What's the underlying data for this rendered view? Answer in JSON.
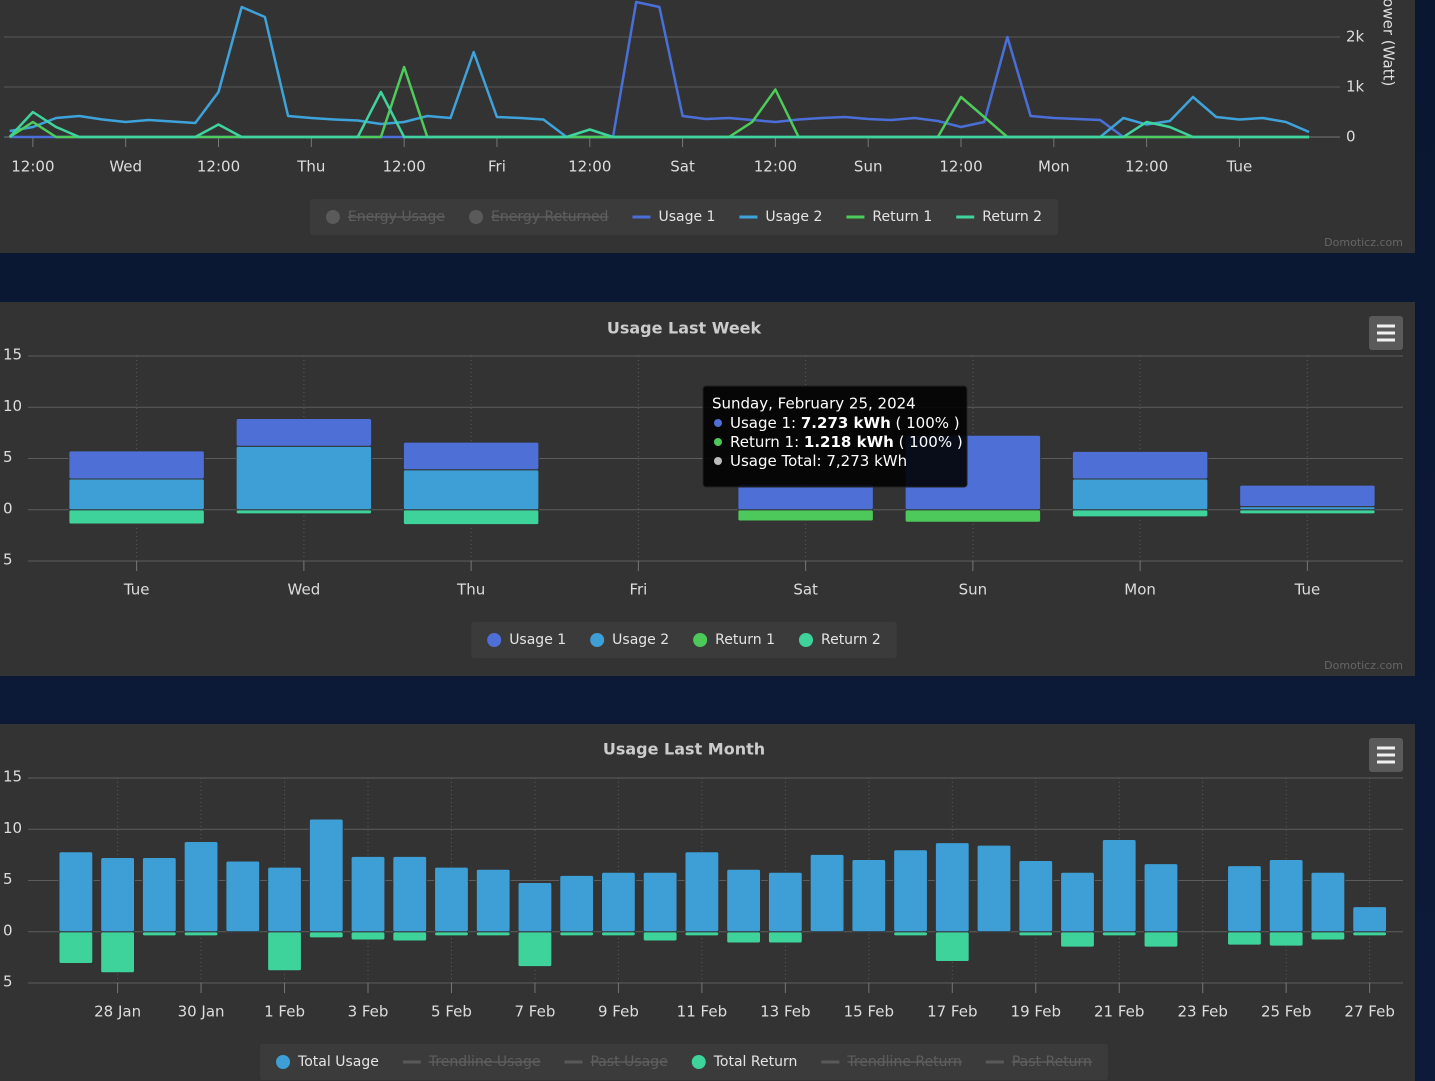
{
  "chart_data": [
    {
      "type": "line",
      "y_title": "Power (Watt)",
      "credits": "Domoticz.com",
      "xlim": [
        9.3,
        181
      ],
      "xticks": [
        {
          "value": 12,
          "label": "12:00"
        },
        {
          "value": 24,
          "label": "Wed"
        },
        {
          "value": 36,
          "label": "12:00"
        },
        {
          "value": 48,
          "label": "Thu"
        },
        {
          "value": 60,
          "label": "12:00"
        },
        {
          "value": 72,
          "label": "Fri"
        },
        {
          "value": 84,
          "label": "12:00"
        },
        {
          "value": 96,
          "label": "Sat"
        },
        {
          "value": 108,
          "label": "12:00"
        },
        {
          "value": 120,
          "label": "Sun"
        },
        {
          "value": 132,
          "label": "12:00"
        },
        {
          "value": 144,
          "label": "Mon"
        },
        {
          "value": 156,
          "label": "12:00"
        },
        {
          "value": 168,
          "label": "Tue"
        }
      ],
      "ylim": [
        0,
        2740
      ],
      "yticks": [
        0,
        {
          "value": 1000,
          "label": "1k"
        },
        {
          "value": 2000,
          "label": "2k"
        }
      ],
      "x": [
        9,
        12,
        15,
        18,
        21,
        24,
        27,
        30,
        33,
        36,
        39,
        42,
        45,
        48,
        51,
        54,
        57,
        60,
        63,
        66,
        69,
        72,
        75,
        78,
        81,
        84,
        87,
        90,
        93,
        96,
        99,
        102,
        105,
        108,
        111,
        114,
        117,
        120,
        123,
        126,
        129,
        132,
        135,
        138,
        141,
        144,
        147,
        150,
        153,
        156,
        159,
        162,
        165,
        168,
        171,
        174,
        177
      ],
      "series": [
        {
          "name": "Energy Usage",
          "visible": false,
          "symbol": "circle"
        },
        {
          "name": "Energy Returned",
          "visible": false,
          "symbol": "circle"
        },
        {
          "name": "Usage 1",
          "color": "#4a6fd9",
          "symbol": "line",
          "values": [
            0,
            0,
            0,
            0,
            0,
            0,
            0,
            0,
            0,
            0,
            0,
            0,
            0,
            0,
            0,
            0,
            0,
            0,
            0,
            0,
            0,
            0,
            0,
            0,
            0,
            0,
            0,
            2700,
            2600,
            420,
            360,
            380,
            340,
            300,
            350,
            380,
            400,
            360,
            340,
            380,
            320,
            200,
            300,
            2000,
            420,
            380,
            360,
            340,
            0,
            0,
            0,
            0,
            0,
            0,
            0,
            0,
            0
          ]
        },
        {
          "name": "Usage 2",
          "color": "#3ea3da",
          "symbol": "line",
          "values": [
            120,
            200,
            380,
            420,
            350,
            300,
            340,
            310,
            280,
            900,
            2600,
            2400,
            420,
            380,
            350,
            330,
            260,
            300,
            420,
            380,
            1700,
            400,
            380,
            350,
            0,
            0,
            0,
            0,
            0,
            0,
            0,
            0,
            0,
            0,
            0,
            0,
            0,
            0,
            0,
            0,
            0,
            0,
            0,
            0,
            0,
            0,
            0,
            0,
            380,
            250,
            320,
            800,
            400,
            350,
            380,
            300,
            100
          ]
        },
        {
          "name": "Return 1",
          "color": "#4dcb5b",
          "symbol": "line",
          "values": [
            0,
            300,
            0,
            0,
            0,
            0,
            0,
            0,
            0,
            0,
            0,
            0,
            0,
            0,
            0,
            0,
            0,
            1400,
            0,
            0,
            0,
            0,
            0,
            0,
            0,
            0,
            0,
            0,
            0,
            0,
            0,
            0,
            300,
            950,
            0,
            0,
            0,
            0,
            0,
            0,
            0,
            800,
            400,
            0,
            0,
            0,
            0,
            0,
            0,
            0,
            0,
            0,
            0,
            0,
            0,
            0,
            0
          ]
        },
        {
          "name": "Return 2",
          "color": "#3fd49d",
          "symbol": "line",
          "values": [
            0,
            500,
            200,
            0,
            0,
            0,
            0,
            0,
            0,
            250,
            0,
            0,
            0,
            0,
            0,
            0,
            900,
            0,
            0,
            0,
            0,
            0,
            0,
            0,
            0,
            150,
            0,
            0,
            0,
            0,
            0,
            0,
            0,
            0,
            0,
            0,
            0,
            0,
            0,
            0,
            0,
            0,
            0,
            0,
            0,
            0,
            0,
            0,
            0,
            300,
            200,
            0,
            0,
            0,
            0,
            0,
            0
          ]
        }
      ]
    },
    {
      "type": "stacked_bar",
      "title": "Usage Last Week",
      "credits": "Domoticz.com",
      "grid": true,
      "categories": [
        "Tue",
        "Wed",
        "Thu",
        "Fri",
        "Sat",
        "Sun",
        "Mon",
        "Tue"
      ],
      "ylim": [
        -5,
        15
      ],
      "yticks": [
        {
          "value": -5,
          "label": "5"
        },
        0,
        5,
        10,
        15
      ],
      "series": [
        {
          "name": "Usage 1",
          "color": "#4d6fd6",
          "symbol": "circle",
          "values": [
            2.75,
            2.7,
            2.7,
            null,
            2.5,
            7.273,
            2.7,
            2.1
          ]
        },
        {
          "name": "Usage 2",
          "color": "#3d9fd6",
          "symbol": "circle",
          "values": [
            3.0,
            6.2,
            3.9,
            null,
            0,
            0,
            3.0,
            0.3
          ]
        },
        {
          "name": "Return 1",
          "color": "#4cc95a",
          "symbol": "circle",
          "values": [
            -0.05,
            0,
            0,
            null,
            -1.1,
            -1.218,
            0,
            0
          ]
        },
        {
          "name": "Return 2",
          "color": "#3fd39c",
          "symbol": "circle",
          "values": [
            -1.4,
            -0.4,
            -1.45,
            null,
            0,
            0,
            -0.7,
            -0.4
          ]
        }
      ],
      "tooltip": {
        "title": "Sunday, February 25, 2024",
        "items": [
          {
            "name": "Usage 1: ",
            "value": "7.273 kWh",
            "percent": " ( 100% )",
            "color": "#4d6fd6"
          },
          {
            "name": "Return 1: ",
            "value": "1.218 kWh",
            "percent": " ( 100% )",
            "color": "#4cc95a"
          },
          {
            "name": "Usage Total: 7,273 kWh",
            "color": "#bbbbbb"
          }
        ]
      }
    },
    {
      "type": "stacked_bar",
      "title": "Usage Last Month",
      "grid": true,
      "categories": [
        null,
        "28 Jan",
        null,
        "30 Jan",
        null,
        "1 Feb",
        null,
        "3 Feb",
        null,
        "5 Feb",
        null,
        "7 Feb",
        null,
        "9 Feb",
        null,
        "11 Feb",
        null,
        "13 Feb",
        null,
        "15 Feb",
        null,
        "17 Feb",
        null,
        "19 Feb",
        null,
        "21 Feb",
        null,
        "23 Feb",
        null,
        "25 Feb",
        null,
        "27 Feb"
      ],
      "ylim": [
        -5,
        15
      ],
      "yticks": [
        {
          "value": -5,
          "label": "5"
        },
        0,
        5,
        10,
        15
      ],
      "series": [
        {
          "name": "Total Usage",
          "color": "#3d9fd6",
          "symbol": "circle",
          "values": [
            7.8,
            7.25,
            7.25,
            8.8,
            6.9,
            6.3,
            11.0,
            7.35,
            7.35,
            6.3,
            6.1,
            4.8,
            5.5,
            5.8,
            5.8,
            7.8,
            6.1,
            5.8,
            7.55,
            7.05,
            8.0,
            8.7,
            8.45,
            6.95,
            5.8,
            9.0,
            6.65,
            null,
            6.45,
            7.05,
            5.8,
            2.45
          ]
        },
        {
          "name": "Trendline Usage",
          "visible": false,
          "symbol": "line"
        },
        {
          "name": "Past Usage",
          "visible": false,
          "symbol": "line"
        },
        {
          "name": "Total Return",
          "color": "#3fd39c",
          "symbol": "circle",
          "values": [
            -3.1,
            -4.0,
            -0.4,
            -0.4,
            0,
            -3.8,
            -0.6,
            -0.8,
            -0.9,
            -0.4,
            -0.4,
            -3.4,
            -0.4,
            -0.4,
            -0.9,
            -0.4,
            -1.1,
            -1.1,
            0,
            0,
            -0.4,
            -2.9,
            0,
            -0.4,
            -1.5,
            -0.4,
            -1.5,
            null,
            -1.3,
            -1.4,
            -0.8,
            -0.4
          ]
        },
        {
          "name": "Trendline Return",
          "visible": false,
          "symbol": "line"
        },
        {
          "name": "Past Return",
          "visible": false,
          "symbol": "line"
        }
      ]
    }
  ]
}
